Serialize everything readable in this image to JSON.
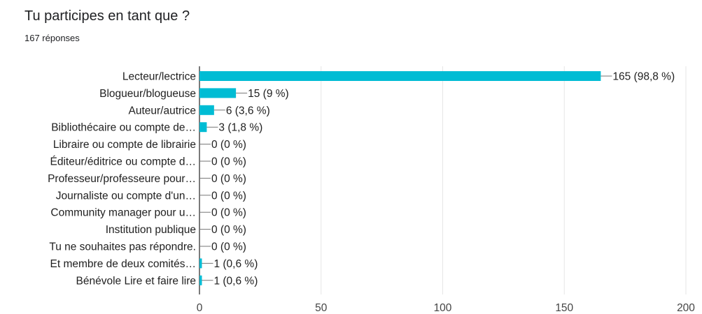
{
  "header": {
    "question": "Tu participes en tant que ?",
    "responses": "167 réponses"
  },
  "colors": {
    "bar": "#00BCD4",
    "grid": "#e6e6e6",
    "axis": "#333333"
  },
  "chart_data": {
    "type": "bar",
    "orientation": "horizontal",
    "categories": [
      "Lecteur/lectrice",
      "Blogueur/blogueuse",
      "Auteur/autrice",
      "Bibliothécaire ou compte de…",
      "Libraire ou compte de librairie",
      "Éditeur/éditrice ou compte d…",
      "Professeur/professeure pour…",
      "Journaliste ou compte d'un…",
      "Community manager pour u…",
      "Institution publique",
      "Tu ne souhaites pas répondre.",
      "Et membre de deux comités…",
      "Bénévole Lire et faire lire"
    ],
    "values": [
      165,
      15,
      6,
      3,
      0,
      0,
      0,
      0,
      0,
      0,
      0,
      1,
      1
    ],
    "data_labels": [
      "165 (98,8 %)",
      "15 (9 %)",
      "6 (3,6 %)",
      "3 (1,8 %)",
      "0 (0 %)",
      "0 (0 %)",
      "0 (0 %)",
      "0 (0 %)",
      "0 (0 %)",
      "0 (0 %)",
      "0 (0 %)",
      "1 (0,6 %)",
      "1 (0,6 %)"
    ],
    "xlim": [
      0,
      200
    ],
    "xticks": [
      0,
      50,
      100,
      150,
      200
    ],
    "grid": true
  }
}
